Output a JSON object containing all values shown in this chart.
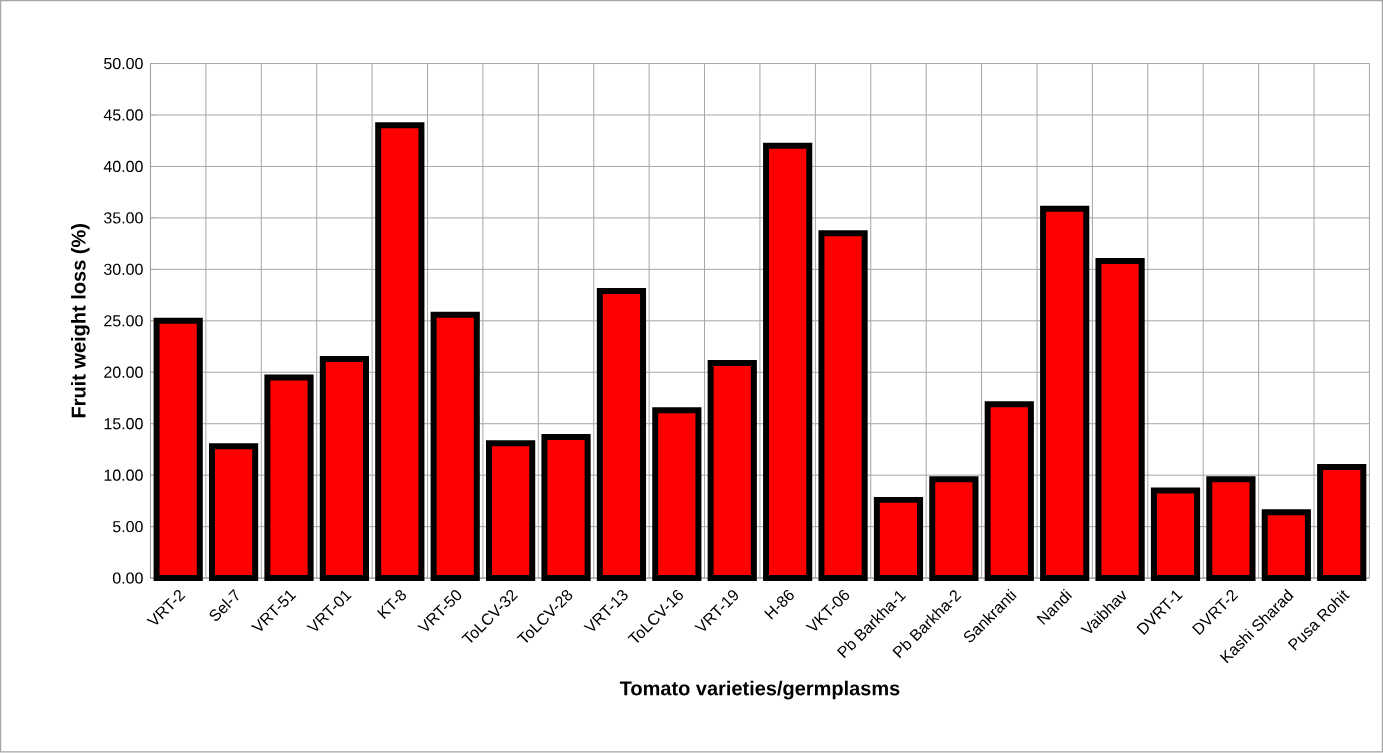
{
  "chart_data": {
    "type": "bar",
    "xlabel": "Tomato varieties/germplasms",
    "ylabel": "Fruit weight loss (%)",
    "categories": [
      "VRT-2",
      "Sel-7",
      "VRT-51",
      "VRT-01",
      "KT-8",
      "VRT-50",
      "ToLCV-32",
      "ToLCV-28",
      "VRT-13",
      "ToLCV-16",
      "VRT-19",
      "H-86",
      "VKT-06",
      "Pb Barkha-1",
      "Pb Barkha-2",
      "Sankranti",
      "Nandi",
      "Vaibhav",
      "DVRT-1",
      "DVRT-2",
      "Kashi Sharad",
      "Pusa Rohit"
    ],
    "values": [
      25.0,
      12.8,
      19.5,
      21.3,
      44.0,
      25.6,
      13.1,
      13.7,
      27.9,
      16.3,
      20.9,
      42.0,
      33.5,
      7.6,
      9.6,
      16.9,
      35.9,
      30.8,
      8.5,
      9.6,
      6.4,
      10.8
    ],
    "color": "#ff0000",
    "ylim": [
      0,
      50
    ],
    "yticks": [
      {
        "value": 0,
        "label": "0.00"
      },
      {
        "value": 5,
        "label": "5.00"
      },
      {
        "value": 10,
        "label": "10.00"
      },
      {
        "value": 15,
        "label": "15.00"
      },
      {
        "value": 20,
        "label": "20.00"
      },
      {
        "value": 25,
        "label": "25.00"
      },
      {
        "value": 30,
        "label": "30.00"
      },
      {
        "value": 35,
        "label": "35.00"
      },
      {
        "value": 40,
        "label": "40.00"
      },
      {
        "value": 45,
        "label": "45.00"
      },
      {
        "value": 50,
        "label": "50.00"
      }
    ],
    "grid": true
  }
}
